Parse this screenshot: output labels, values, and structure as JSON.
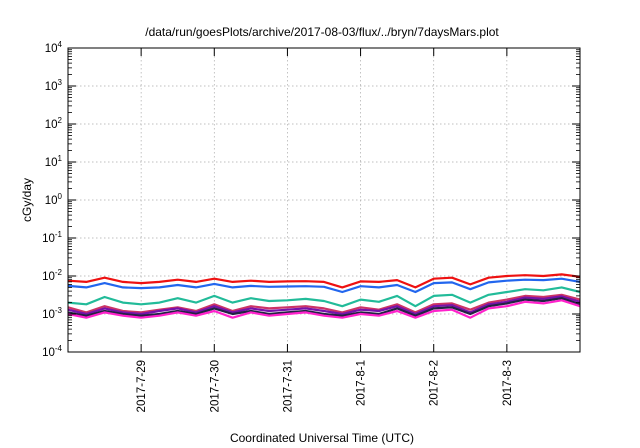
{
  "chart_data": {
    "type": "line",
    "title": "/data/run/goesPlots/archive/2017-08-03/flux/../bryn/7daysMars.plot",
    "xlabel": "Coordinated Universal Time (UTC)",
    "ylabel": "cGy/day",
    "y_scale": "log",
    "ylim": [
      0.0001,
      10000
    ],
    "xlim": [
      "2017-07-28T00:00",
      "2017-08-04T00:00"
    ],
    "grid": true,
    "legend": "none",
    "y_ticks": [
      {
        "base": "10",
        "exp": "4"
      },
      {
        "base": "10",
        "exp": "3"
      },
      {
        "base": "10",
        "exp": "2"
      },
      {
        "base": "10",
        "exp": "1"
      },
      {
        "base": "10",
        "exp": "0"
      },
      {
        "base": "10",
        "exp": "-1"
      },
      {
        "base": "10",
        "exp": "-2"
      },
      {
        "base": "10",
        "exp": "-3"
      },
      {
        "base": "10",
        "exp": "-4"
      }
    ],
    "x_ticks": [
      {
        "label": "2017-7-29",
        "date": "2017-07-29"
      },
      {
        "label": "2017-7-30",
        "date": "2017-07-30"
      },
      {
        "label": "2017-7-31",
        "date": "2017-07-31"
      },
      {
        "label": "2017-8-1",
        "date": "2017-08-01"
      },
      {
        "label": "2017-8-2",
        "date": "2017-08-02"
      },
      {
        "label": "2017-8-3",
        "date": "2017-08-03"
      }
    ],
    "x": [
      "2017-07-28T00:00",
      "2017-07-28T06:00",
      "2017-07-28T12:00",
      "2017-07-28T18:00",
      "2017-07-29T00:00",
      "2017-07-29T06:00",
      "2017-07-29T12:00",
      "2017-07-29T18:00",
      "2017-07-30T00:00",
      "2017-07-30T06:00",
      "2017-07-30T12:00",
      "2017-07-30T18:00",
      "2017-07-31T00:00",
      "2017-07-31T06:00",
      "2017-07-31T12:00",
      "2017-07-31T18:00",
      "2017-08-01T00:00",
      "2017-08-01T06:00",
      "2017-08-01T12:00",
      "2017-08-01T18:00",
      "2017-08-02T00:00",
      "2017-08-02T06:00",
      "2017-08-02T12:00",
      "2017-08-02T18:00",
      "2017-08-03T00:00",
      "2017-08-03T06:00",
      "2017-08-03T12:00",
      "2017-08-03T18:00",
      "2017-08-04T00:00"
    ],
    "series": [
      {
        "color": "#ee1111",
        "values": [
          0.0075,
          0.007,
          0.009,
          0.007,
          0.0065,
          0.007,
          0.008,
          0.007,
          0.0085,
          0.007,
          0.0075,
          0.007,
          0.0072,
          0.0073,
          0.007,
          0.005,
          0.0072,
          0.007,
          0.0078,
          0.005,
          0.0085,
          0.009,
          0.006,
          0.009,
          0.01,
          0.0105,
          0.01,
          0.011,
          0.0095
        ]
      },
      {
        "color": "#2266ee",
        "values": [
          0.0055,
          0.005,
          0.0065,
          0.005,
          0.0048,
          0.005,
          0.0058,
          0.005,
          0.0062,
          0.005,
          0.0055,
          0.0052,
          0.0053,
          0.0054,
          0.0052,
          0.0038,
          0.0054,
          0.005,
          0.0058,
          0.0038,
          0.0065,
          0.0068,
          0.0045,
          0.0068,
          0.0075,
          0.008,
          0.0078,
          0.0085,
          0.007
        ]
      },
      {
        "color": "#22bb99",
        "values": [
          0.002,
          0.0018,
          0.0028,
          0.002,
          0.0018,
          0.002,
          0.0026,
          0.002,
          0.003,
          0.002,
          0.0026,
          0.0022,
          0.0023,
          0.0025,
          0.0022,
          0.0016,
          0.0024,
          0.0021,
          0.003,
          0.0016,
          0.003,
          0.0032,
          0.002,
          0.0032,
          0.0038,
          0.0045,
          0.0042,
          0.005,
          0.0038
        ]
      },
      {
        "color": "#cc3366",
        "values": [
          0.0015,
          0.0011,
          0.0016,
          0.0012,
          0.0011,
          0.0013,
          0.0015,
          0.0012,
          0.0018,
          0.0012,
          0.0016,
          0.0014,
          0.0015,
          0.0016,
          0.0014,
          0.0011,
          0.0015,
          0.0013,
          0.0018,
          0.0011,
          0.0018,
          0.0019,
          0.0013,
          0.002,
          0.0024,
          0.003,
          0.0028,
          0.0032,
          0.0024
        ]
      },
      {
        "color": "#7711aa",
        "values": [
          0.0013,
          0.001,
          0.0014,
          0.0011,
          0.001,
          0.0012,
          0.0014,
          0.0011,
          0.0016,
          0.0011,
          0.0014,
          0.0012,
          0.0013,
          0.0014,
          0.0012,
          0.001,
          0.0013,
          0.0012,
          0.0016,
          0.001,
          0.0016,
          0.0017,
          0.0011,
          0.0018,
          0.0021,
          0.0027,
          0.0025,
          0.0029,
          0.0021
        ]
      },
      {
        "color": "#222244",
        "values": [
          0.0011,
          0.0009,
          0.0012,
          0.001,
          0.0009,
          0.001,
          0.0012,
          0.001,
          0.0014,
          0.001,
          0.0012,
          0.001,
          0.0011,
          0.0012,
          0.001,
          0.0009,
          0.0011,
          0.001,
          0.0014,
          0.0009,
          0.0014,
          0.0015,
          0.001,
          0.0016,
          0.0019,
          0.0024,
          0.0022,
          0.0026,
          0.0018
        ]
      },
      {
        "color": "#ff22cc",
        "values": [
          0.001,
          0.0008,
          0.0011,
          0.0009,
          0.0008,
          0.0009,
          0.0011,
          0.0009,
          0.0012,
          0.0008,
          0.0011,
          0.0009,
          0.001,
          0.0011,
          0.0009,
          0.0008,
          0.001,
          0.0009,
          0.0012,
          0.0008,
          0.0012,
          0.0013,
          0.0008,
          0.0014,
          0.0016,
          0.0021,
          0.0019,
          0.0023,
          0.0016
        ]
      }
    ]
  }
}
